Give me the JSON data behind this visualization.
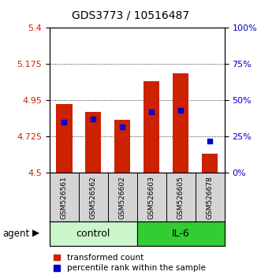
{
  "title": "GDS3773 / 10516487",
  "samples": [
    "GSM526561",
    "GSM526562",
    "GSM526602",
    "GSM526603",
    "GSM526605",
    "GSM526678"
  ],
  "red_values": [
    4.93,
    4.88,
    4.83,
    5.07,
    5.12,
    4.62
  ],
  "blue_percentiles": [
    35,
    37,
    32,
    42,
    43,
    22
  ],
  "y_min": 4.5,
  "y_max": 5.4,
  "y_ticks_left": [
    4.5,
    4.725,
    4.95,
    5.175,
    5.4
  ],
  "y_ticks_right": [
    0,
    25,
    50,
    75,
    100
  ],
  "bar_color": "#cc2200",
  "dot_color": "#0000cc",
  "bar_bottom": 4.5,
  "bar_width": 0.55,
  "control_color": "#ccf5cc",
  "il6_color": "#33cc33",
  "sample_bg": "#d4d4d4",
  "legend_red": "transformed count",
  "legend_blue": "percentile rank within the sample",
  "left_color": "#cc2200",
  "right_color": "#0000cc",
  "title_fontsize": 10
}
